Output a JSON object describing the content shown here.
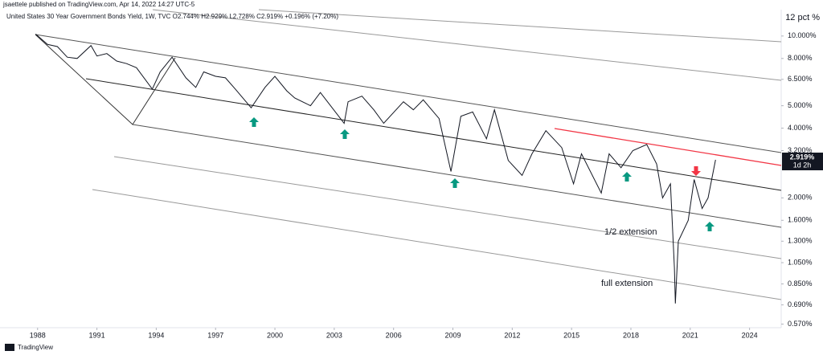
{
  "header": {
    "publisher": "jsaettele published on TradingView.com, Apr 14, 2022 14:27 UTC-5",
    "footer": "TradingView"
  },
  "chart_data": {
    "type": "line",
    "title": "United States 30 Year Government Bonds Yield, 1W, TVC  O2.744%  H2.929%  L2.728%  C2.919%  +0.196% (+7.20%)",
    "y_unit_label": "12 pct %",
    "log_scale": true,
    "x": [
      1987.9,
      1988.5,
      1989,
      1989.5,
      1990,
      1990.7,
      1991,
      1991.5,
      1992,
      1992.5,
      1993,
      1993.8,
      1994.2,
      1994.8,
      1995.5,
      1996,
      1996.4,
      1997,
      1997.5,
      1998,
      1998.8,
      1999.5,
      2000,
      2000.6,
      2001,
      2001.8,
      2002.3,
      2003.5,
      2003.7,
      2004.4,
      2005,
      2005.5,
      2006.5,
      2007,
      2007.5,
      2008.3,
      2008.9,
      2009.4,
      2010,
      2010.7,
      2011.1,
      2011.8,
      2012.5,
      2013,
      2013.7,
      2014.5,
      2015.1,
      2015.5,
      2016.5,
      2016.9,
      2017.5,
      2018.1,
      2018.8,
      2019.3,
      2019.6,
      2020,
      2020.2,
      2020.25,
      2020.4,
      2020.9,
      2021.2,
      2021.6,
      2021.9,
      2022.28
    ],
    "series": [
      {
        "name": "US30Y",
        "color": "#131722",
        "values": [
          10.2,
          9.2,
          9.0,
          8.1,
          8.0,
          9.1,
          8.2,
          8.4,
          7.8,
          7.6,
          7.3,
          5.9,
          7.0,
          8.1,
          6.6,
          6.0,
          7.0,
          6.7,
          6.6,
          5.9,
          4.9,
          6.0,
          6.7,
          5.8,
          5.4,
          5.0,
          5.7,
          4.2,
          5.2,
          5.5,
          4.8,
          4.2,
          5.2,
          4.8,
          5.3,
          4.4,
          2.6,
          4.5,
          4.7,
          3.6,
          4.8,
          2.9,
          2.5,
          3.1,
          3.9,
          3.3,
          2.3,
          3.1,
          2.1,
          3.1,
          2.7,
          3.2,
          3.4,
          2.8,
          2.0,
          2.3,
          1.0,
          0.7,
          1.3,
          1.6,
          2.4,
          1.8,
          2.0,
          2.919
        ]
      }
    ],
    "last_label": "2.919%",
    "countdown": "1d 2h",
    "xlim": [
      1986.1,
      2025.6
    ],
    "ylim": [
      0.55,
      13
    ],
    "xticks": [
      1988,
      1991,
      1994,
      1997,
      2000,
      2003,
      2006,
      2009,
      2012,
      2015,
      2018,
      2021,
      2024
    ],
    "yticks": [
      {
        "value": 10,
        "label": "10.000%"
      },
      {
        "value": 8,
        "label": "8.000%"
      },
      {
        "value": 6.5,
        "label": "6.500%"
      },
      {
        "value": 5,
        "label": "5.000%"
      },
      {
        "value": 4,
        "label": "4.000%"
      },
      {
        "value": 3.2,
        "label": "3.200%"
      },
      {
        "value": 2,
        "label": "2.000%"
      },
      {
        "value": 1.6,
        "label": "1.600%"
      },
      {
        "value": 1.3,
        "label": "1.300%"
      },
      {
        "value": 1.05,
        "label": "1.050%"
      },
      {
        "value": 0.85,
        "label": "0.850%"
      },
      {
        "value": 0.69,
        "label": "0.690%"
      },
      {
        "value": 0.57,
        "label": "0.570%"
      }
    ],
    "annotations": [
      "1/2 extension",
      "full extension"
    ]
  }
}
